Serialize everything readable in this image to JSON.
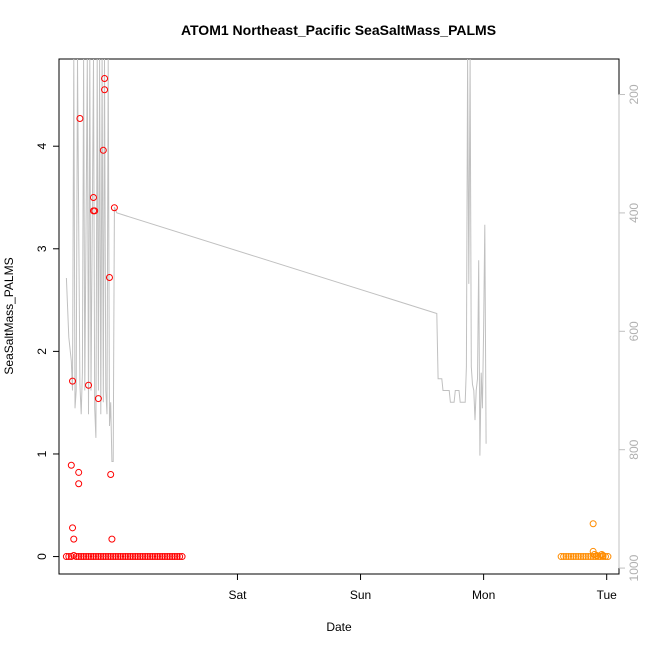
{
  "chart_data": {
    "type": "scatter",
    "title": "ATOM1 Northeast_Pacific SeaSaltMass_PALMS",
    "xlabel": "Date",
    "ylabel": "SeaSaltMass_PALMS",
    "x_ticks": [
      "Sat",
      "Sun",
      "Mon",
      "Tue"
    ],
    "x_tick_positions": [
      1.0,
      2.0,
      3.0,
      4.0
    ],
    "xlim": [
      -0.45,
      4.1
    ],
    "ylim": [
      -0.17,
      4.85
    ],
    "y_ticks": [
      0,
      1,
      2,
      3,
      4
    ],
    "right_axis": {
      "ticks": [
        200,
        400,
        600,
        800,
        1000
      ],
      "lim": [
        1010,
        140
      ],
      "color": "#c0c0c0"
    },
    "grid": false,
    "series": [
      {
        "color": "#ff0000",
        "points": [
          [
            -0.39,
            0
          ],
          [
            -0.37,
            0
          ],
          [
            -0.35,
            0
          ],
          [
            -0.33,
            0.01
          ],
          [
            -0.31,
            0
          ],
          [
            -0.29,
            0
          ],
          [
            -0.27,
            0
          ],
          [
            -0.25,
            0
          ],
          [
            -0.23,
            0
          ],
          [
            -0.21,
            0
          ],
          [
            -0.19,
            0
          ],
          [
            -0.17,
            0
          ],
          [
            -0.15,
            0
          ],
          [
            -0.13,
            0
          ],
          [
            -0.11,
            0
          ],
          [
            -0.09,
            0
          ],
          [
            -0.07,
            0
          ],
          [
            -0.05,
            0
          ],
          [
            -0.03,
            0
          ],
          [
            -0.01,
            0
          ],
          [
            0.01,
            0
          ],
          [
            0.03,
            0
          ],
          [
            0.05,
            0
          ],
          [
            0.07,
            0
          ],
          [
            0.09,
            0
          ],
          [
            0.11,
            0
          ],
          [
            0.13,
            0
          ],
          [
            0.15,
            0
          ],
          [
            0.17,
            0
          ],
          [
            0.19,
            0
          ],
          [
            0.21,
            0
          ],
          [
            0.23,
            0
          ],
          [
            0.25,
            0
          ],
          [
            0.27,
            0
          ],
          [
            0.29,
            0
          ],
          [
            0.31,
            0
          ],
          [
            0.33,
            0
          ],
          [
            0.35,
            0
          ],
          [
            0.37,
            0
          ],
          [
            0.39,
            0
          ],
          [
            0.41,
            0
          ],
          [
            0.43,
            0
          ],
          [
            0.45,
            0
          ],
          [
            0.47,
            0
          ],
          [
            0.49,
            0
          ],
          [
            0.51,
            0
          ],
          [
            0.53,
            0
          ],
          [
            0.55,
            0
          ],
          [
            -0.35,
            0.89
          ],
          [
            -0.34,
            0.28
          ],
          [
            -0.33,
            0.17
          ],
          [
            -0.34,
            1.71
          ],
          [
            -0.29,
            0.82
          ],
          [
            -0.29,
            0.71
          ],
          [
            -0.28,
            4.27
          ],
          [
            -0.21,
            1.67
          ],
          [
            -0.17,
            3.5
          ],
          [
            -0.17,
            3.37
          ],
          [
            -0.16,
            3.37
          ],
          [
            -0.13,
            1.54
          ],
          [
            -0.08,
            4.66
          ],
          [
            -0.08,
            4.55
          ],
          [
            -0.09,
            3.96
          ],
          [
            -0.04,
            2.72
          ],
          [
            -0.03,
            0.8
          ],
          [
            -0.02,
            0.17
          ],
          [
            0.0,
            3.4
          ]
        ]
      },
      {
        "color": "#ff8c00",
        "points": [
          [
            3.63,
            0
          ],
          [
            3.65,
            0
          ],
          [
            3.67,
            0
          ],
          [
            3.69,
            0
          ],
          [
            3.71,
            0
          ],
          [
            3.73,
            0
          ],
          [
            3.75,
            0
          ],
          [
            3.77,
            0
          ],
          [
            3.79,
            0
          ],
          [
            3.81,
            0
          ],
          [
            3.83,
            0
          ],
          [
            3.85,
            0
          ],
          [
            3.87,
            0
          ],
          [
            3.89,
            0
          ],
          [
            3.91,
            0
          ],
          [
            3.93,
            0
          ],
          [
            3.95,
            0
          ],
          [
            3.97,
            0
          ],
          [
            3.99,
            0
          ],
          [
            4.01,
            0
          ],
          [
            3.89,
            0.32
          ],
          [
            3.89,
            0.05
          ],
          [
            3.9,
            0.02
          ],
          [
            3.92,
            0.01
          ],
          [
            3.96,
            0.02
          ],
          [
            3.97,
            0.01
          ]
        ]
      }
    ],
    "line_series": {
      "color": "#c0c0c0",
      "axis": "right",
      "points": [
        [
          -0.39,
          510
        ],
        [
          -0.38,
          560
        ],
        [
          -0.37,
          610
        ],
        [
          -0.35,
          650
        ],
        [
          -0.34,
          700
        ],
        [
          -0.33,
          140
        ],
        [
          -0.32,
          730
        ],
        [
          -0.31,
          700
        ],
        [
          -0.3,
          140
        ],
        [
          -0.28,
          690
        ],
        [
          -0.27,
          740
        ],
        [
          -0.26,
          670
        ],
        [
          -0.25,
          140
        ],
        [
          -0.24,
          700
        ],
        [
          -0.22,
          140
        ],
        [
          -0.21,
          740
        ],
        [
          -0.2,
          140
        ],
        [
          -0.19,
          700
        ],
        [
          -0.17,
          140
        ],
        [
          -0.16,
          730
        ],
        [
          -0.15,
          780
        ],
        [
          -0.14,
          140
        ],
        [
          -0.13,
          700
        ],
        [
          -0.12,
          140
        ],
        [
          -0.11,
          740
        ],
        [
          -0.1,
          140
        ],
        [
          -0.09,
          720
        ],
        [
          -0.08,
          140
        ],
        [
          -0.07,
          700
        ],
        [
          -0.06,
          740
        ],
        [
          -0.05,
          140
        ],
        [
          -0.04,
          760
        ],
        [
          -0.03,
          720
        ],
        [
          -0.02,
          820
        ],
        [
          -0.01,
          820
        ],
        [
          0.0,
          390
        ],
        [
          0.02,
          400
        ],
        [
          2.62,
          570
        ],
        [
          2.63,
          680
        ],
        [
          2.66,
          680
        ],
        [
          2.67,
          700
        ],
        [
          2.72,
          700
        ],
        [
          2.73,
          720
        ],
        [
          2.76,
          720
        ],
        [
          2.77,
          700
        ],
        [
          2.8,
          700
        ],
        [
          2.81,
          720
        ],
        [
          2.85,
          720
        ],
        [
          2.86,
          660
        ],
        [
          2.87,
          140
        ],
        [
          2.88,
          520
        ],
        [
          2.89,
          140
        ],
        [
          2.9,
          660
        ],
        [
          2.91,
          690
        ],
        [
          2.92,
          700
        ],
        [
          2.93,
          750
        ],
        [
          2.94,
          700
        ],
        [
          2.95,
          680
        ],
        [
          2.96,
          480
        ],
        [
          2.97,
          810
        ],
        [
          2.98,
          670
        ],
        [
          2.99,
          730
        ],
        [
          3.0,
          600
        ],
        [
          3.01,
          420
        ],
        [
          3.02,
          790
        ]
      ]
    }
  }
}
